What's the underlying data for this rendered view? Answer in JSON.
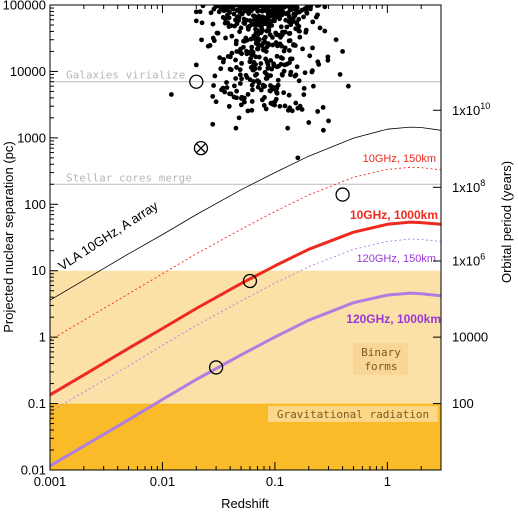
{
  "chart_data": {
    "type": "line",
    "xlabel": "Redshift",
    "ylabel": "Projected nuclear separation (pc)",
    "y2label": "Orbital period (years)",
    "xscale": "log",
    "yscale": "log",
    "xlim": [
      0.001,
      3
    ],
    "ylim": [
      0.01,
      100000
    ],
    "x_ticks": [
      {
        "value": 0.001,
        "label": "0.001"
      },
      {
        "value": 0.01,
        "label": "0.01"
      },
      {
        "value": 0.1,
        "label": "0.1"
      },
      {
        "value": 1,
        "label": "1"
      }
    ],
    "y_ticks": [
      {
        "value": 0.01,
        "label": "0.01"
      },
      {
        "value": 0.1,
        "label": "0.1"
      },
      {
        "value": 1,
        "label": "1"
      },
      {
        "value": 10,
        "label": "10"
      },
      {
        "value": 100,
        "label": "100"
      },
      {
        "value": 1000,
        "label": "1000"
      },
      {
        "value": 10000,
        "label": "10000"
      },
      {
        "value": 100000,
        "label": "100000"
      }
    ],
    "y2_ticks": [
      {
        "at_y": 0.1,
        "label": "100"
      },
      {
        "at_y": 1.0,
        "label": "10000"
      },
      {
        "at_y": 14,
        "label": "1x10",
        "sup": "6"
      },
      {
        "at_y": 180,
        "label": "1x10",
        "sup": "8"
      },
      {
        "at_y": 2600,
        "label": "1x10",
        "sup": "10"
      }
    ],
    "grid": false,
    "regions": [
      {
        "name": "gravitational-radiation",
        "y_range": [
          0.01,
          0.1
        ],
        "color": "#f9bb27",
        "label": "Gravitational radiation"
      },
      {
        "name": "binary-forms",
        "y_range": [
          0.1,
          10
        ],
        "color": "#fbe0a8",
        "label": "Binary forms"
      }
    ],
    "hlines": [
      {
        "name": "galaxies-virialize",
        "y": 7000,
        "color": "#bbbbbb",
        "label": "Galaxies virialize"
      },
      {
        "name": "stellar-cores-merge",
        "y": 200,
        "color": "#bbbbbb",
        "label": "Stellar cores merge"
      }
    ],
    "series": [
      {
        "key": "vla",
        "name": "VLA 10GHz, A array",
        "color": "#000000",
        "width": 0.8,
        "dash": "",
        "label_color": "#000000",
        "x": [
          0.001,
          0.002,
          0.005,
          0.01,
          0.02,
          0.05,
          0.1,
          0.2,
          0.5,
          1,
          1.6,
          2,
          3
        ],
        "y": [
          3.6,
          7.2,
          18,
          35,
          70,
          165,
          300,
          530,
          990,
          1350,
          1450,
          1430,
          1300
        ]
      },
      {
        "key": "g10_150",
        "name": "10GHz, 150km",
        "color": "#ee2a1f",
        "width": 0.9,
        "dash": "2,2.5",
        "label_color": "#ee2a1f",
        "x": [
          0.001,
          0.002,
          0.005,
          0.01,
          0.02,
          0.05,
          0.1,
          0.2,
          0.5,
          1,
          1.6,
          2,
          3
        ],
        "y": [
          0.9,
          1.8,
          4.5,
          9,
          18,
          42,
          78,
          138,
          255,
          335,
          360,
          355,
          330
        ]
      },
      {
        "key": "g10_1000",
        "name": "10GHz, 1000km",
        "color": "#ee2a1f",
        "width": 3,
        "dash": "",
        "label_color": "#ee2a1f",
        "x": [
          0.001,
          0.002,
          0.005,
          0.01,
          0.02,
          0.05,
          0.1,
          0.2,
          0.5,
          1,
          1.6,
          2,
          3
        ],
        "y": [
          0.135,
          0.27,
          0.68,
          1.35,
          2.7,
          6.4,
          11.8,
          21,
          38,
          50,
          54,
          53,
          50
        ]
      },
      {
        "key": "g120_150",
        "name": "120GHz, 150km",
        "color": "#b07de0",
        "width": 0.9,
        "dash": "2,2.5",
        "label_color": "#9a38d8",
        "x": [
          0.001,
          0.002,
          0.005,
          0.01,
          0.02,
          0.05,
          0.1,
          0.2,
          0.5,
          1,
          1.6,
          2,
          3
        ],
        "y": [
          0.075,
          0.15,
          0.37,
          0.75,
          1.5,
          3.5,
          6.5,
          11.5,
          21,
          27.5,
          30,
          29.5,
          27.5
        ]
      },
      {
        "key": "g120_1000",
        "name": "120GHz, 1000km",
        "color": "#b07de0",
        "width": 3,
        "dash": "",
        "label_color": "#9a38d8",
        "x": [
          0.001,
          0.002,
          0.005,
          0.01,
          0.02,
          0.05,
          0.1,
          0.2,
          0.5,
          1,
          1.6,
          2,
          3
        ],
        "y": [
          0.0115,
          0.023,
          0.057,
          0.115,
          0.23,
          0.54,
          1.0,
          1.8,
          3.3,
          4.3,
          4.6,
          4.5,
          4.2
        ]
      }
    ],
    "circled_points": [
      {
        "x": 0.02,
        "y": 7000
      },
      {
        "x": 0.022,
        "y": 700,
        "crossed": true
      },
      {
        "x": 0.4,
        "y": 140
      },
      {
        "x": 0.06,
        "y": 7
      },
      {
        "x": 0.03,
        "y": 0.35
      }
    ],
    "scatter": {
      "color": "#000000",
      "outliers": [
        [
          0.012,
          4500
        ],
        [
          0.028,
          4200
        ],
        [
          0.16,
          500
        ],
        [
          0.4,
          20000
        ],
        [
          0.45,
          6000
        ],
        [
          0.38,
          9000
        ],
        [
          0.3,
          1800
        ],
        [
          0.27,
          1300
        ],
        [
          0.045,
          1400
        ],
        [
          0.048,
          2000
        ],
        [
          0.028,
          1600
        ],
        [
          0.03,
          3500
        ],
        [
          0.2,
          1700
        ],
        [
          0.24,
          2500
        ],
        [
          0.22,
          6000
        ],
        [
          0.35,
          30000
        ],
        [
          0.16,
          2800
        ],
        [
          0.13,
          1400
        ],
        [
          0.033,
          11000
        ],
        [
          0.1,
          3500
        ]
      ],
      "cluster": {
        "x_range": [
          0.02,
          0.3
        ],
        "y_range": [
          2500,
          100000
        ],
        "count": 520
      }
    }
  }
}
